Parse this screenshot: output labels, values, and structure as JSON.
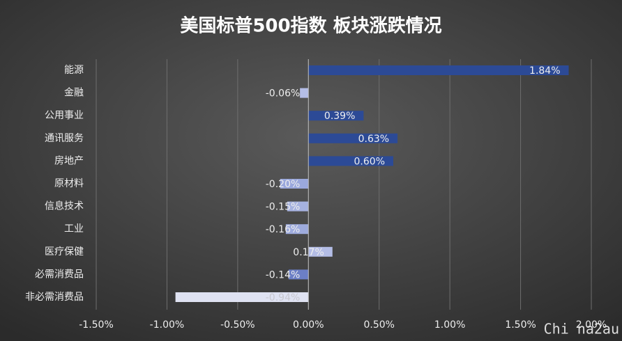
{
  "chart_data": {
    "type": "hbar",
    "title": "美国标普500指数 板块涨跌情况",
    "categories": [
      "能源",
      "金融",
      "公用事业",
      "通讯服务",
      "房地产",
      "原材料",
      "信息技术",
      "工业",
      "医疗保健",
      "必需消费品",
      "非必需消费品"
    ],
    "values": [
      1.84,
      -0.06,
      0.39,
      0.63,
      0.6,
      -0.2,
      -0.15,
      -0.16,
      0.17,
      -0.14,
      -0.94
    ],
    "value_labels": [
      "1.84%",
      "-0.06%",
      "0.39%",
      "0.63%",
      "0.60%",
      "-0.20%",
      "-0.15%",
      "-0.16%",
      "0.17%",
      "-0.14%",
      "-0.94%"
    ],
    "colors": [
      "#2c4a96",
      "#b4bde6",
      "#2c4a96",
      "#2c4a96",
      "#2c4a96",
      "#9aa8dc",
      "#a6b2e0",
      "#9eabdd",
      "#b4bde6",
      "#6c7fc6",
      "#dfe2f2"
    ],
    "xlim": [
      -1.5,
      2.0
    ],
    "xticks": [
      {
        "value": -1.5,
        "label": "-1.50%"
      },
      {
        "value": -1.0,
        "label": "-1.00%"
      },
      {
        "value": -0.5,
        "label": "-0.50%"
      },
      {
        "value": 0,
        "label": "0.00%"
      },
      {
        "value": 0.5,
        "label": "0.50%"
      },
      {
        "value": 1.0,
        "label": "1.00%"
      },
      {
        "value": 1.5,
        "label": "1.50%"
      },
      {
        "value": 2.0,
        "label": "2.00%"
      }
    ],
    "grid": true,
    "watermark": "Chi na2au"
  }
}
